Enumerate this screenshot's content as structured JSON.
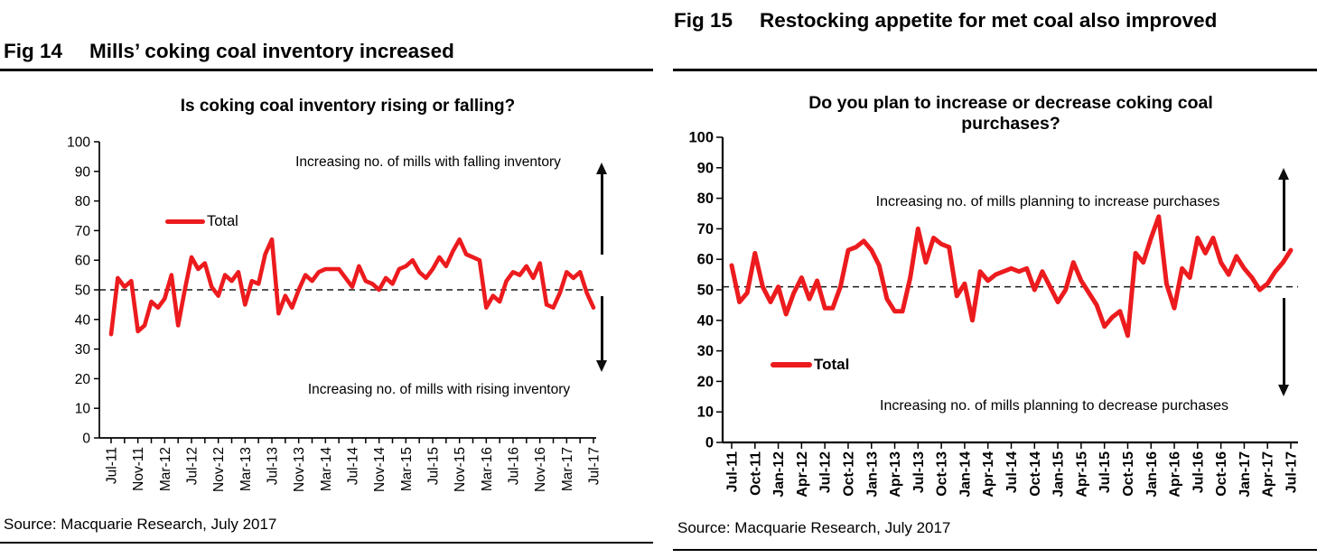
{
  "colors": {
    "series_red": "#ec1b1e",
    "axis_black": "#000000",
    "dashed_line": "#1a1a1a",
    "arrow_black": "#0d0d0d"
  },
  "fig14": {
    "fig_label": "Fig 14",
    "fig_title": "Mills’ coking coal inventory increased",
    "chart_title": "Is coking coal inventory rising or falling?",
    "legend_label": "Total",
    "annotation_top": "Increasing no. of mills with falling inventory",
    "annotation_bottom": "Increasing no. of mills with rising inventory",
    "source": "Source: Macquarie Research, July 2017"
  },
  "fig15": {
    "fig_label": "Fig 15",
    "fig_title": "Restocking appetite for met coal also improved",
    "chart_title": "Do you plan to increase or decrease coking coal purchases?",
    "legend_label": "Total",
    "annotation_top": "Increasing no. of mills planning to increase purchases",
    "annotation_bottom": "Increasing no. of mills planning to decrease purchases",
    "source": "Source: Macquarie Research, July 2017"
  },
  "chart_data": [
    {
      "id": "fig14",
      "type": "line",
      "title": "Is coking coal inventory rising or falling?",
      "x_range": [
        "Jul-11",
        "Jul-17"
      ],
      "x_frequency": "monthly",
      "n_points": 73,
      "x_tick_labels": [
        "Jul-11",
        "Nov-11",
        "Mar-12",
        "Jul-12",
        "Nov-12",
        "Mar-13",
        "Jul-13",
        "Nov-13",
        "Mar-14",
        "Jul-14",
        "Nov-14",
        "Mar-15",
        "Jul-15",
        "Nov-15",
        "Mar-16",
        "Jul-16",
        "Nov-16",
        "Mar-17",
        "Jul-17"
      ],
      "x_label_every_months": 4,
      "x_minor_tick_every_months": 2,
      "y_ticks": [
        0,
        10,
        20,
        30,
        40,
        50,
        60,
        70,
        80,
        90,
        100
      ],
      "ylim": [
        0,
        100
      ],
      "reference_line": 50,
      "grid": false,
      "legend_position": "upper-left-inside",
      "series": [
        {
          "name": "Total",
          "color": "#ec1b1e",
          "values": [
            35,
            54,
            51,
            53,
            36,
            38,
            46,
            44,
            47,
            55,
            38,
            50,
            61,
            57,
            59,
            51,
            48,
            55,
            53,
            56,
            45,
            53,
            52,
            62,
            67,
            42,
            48,
            44,
            50,
            55,
            53,
            56,
            57,
            57,
            57,
            54,
            51,
            58,
            53,
            52,
            50,
            54,
            52,
            57,
            58,
            60,
            56,
            54,
            57,
            61,
            58,
            63,
            67,
            62,
            61,
            60,
            44,
            48,
            46,
            53,
            56,
            55,
            58,
            54,
            59,
            45,
            44,
            49,
            56,
            54,
            56,
            49,
            44
          ]
        }
      ]
    },
    {
      "id": "fig15",
      "type": "line",
      "title": "Do you plan to increase or decrease coking coal purchases?",
      "x_range": [
        "Jul-11",
        "Jul-17"
      ],
      "x_frequency": "monthly",
      "n_points": 73,
      "x_tick_labels": [
        "Jul-11",
        "Oct-11",
        "Jan-12",
        "Apr-12",
        "Jul-12",
        "Oct-12",
        "Jan-13",
        "Apr-13",
        "Jul-13",
        "Oct-13",
        "Jan-14",
        "Apr-14",
        "Jul-14",
        "Oct-14",
        "Jan-15",
        "Apr-15",
        "Jul-15",
        "Oct-15",
        "Jan-16",
        "Apr-16",
        "Jul-16",
        "Oct-16",
        "Jan-17",
        "Apr-17",
        "Jul-17"
      ],
      "x_label_every_months": 3,
      "x_minor_tick_every_months": 3,
      "y_ticks": [
        0,
        10,
        20,
        30,
        40,
        50,
        60,
        70,
        80,
        90,
        100
      ],
      "ylim": [
        0,
        100
      ],
      "reference_line": 51,
      "grid": false,
      "legend_position": "lower-left-inside",
      "series": [
        {
          "name": "Total",
          "color": "#ec1b1e",
          "values": [
            58,
            46,
            49,
            62,
            51,
            46,
            51,
            42,
            49,
            54,
            47,
            53,
            44,
            44,
            51,
            63,
            64,
            66,
            63,
            58,
            47,
            43,
            43,
            54,
            70,
            59,
            67,
            65,
            64,
            48,
            52,
            40,
            56,
            53,
            55,
            56,
            57,
            56,
            57,
            50,
            56,
            51,
            46,
            50,
            59,
            53,
            49,
            45,
            38,
            41,
            43,
            35,
            62,
            59,
            67,
            74,
            52,
            44,
            57,
            54,
            67,
            62,
            67,
            59,
            55,
            61,
            57,
            54,
            50,
            52,
            56,
            59,
            63
          ]
        }
      ]
    }
  ]
}
